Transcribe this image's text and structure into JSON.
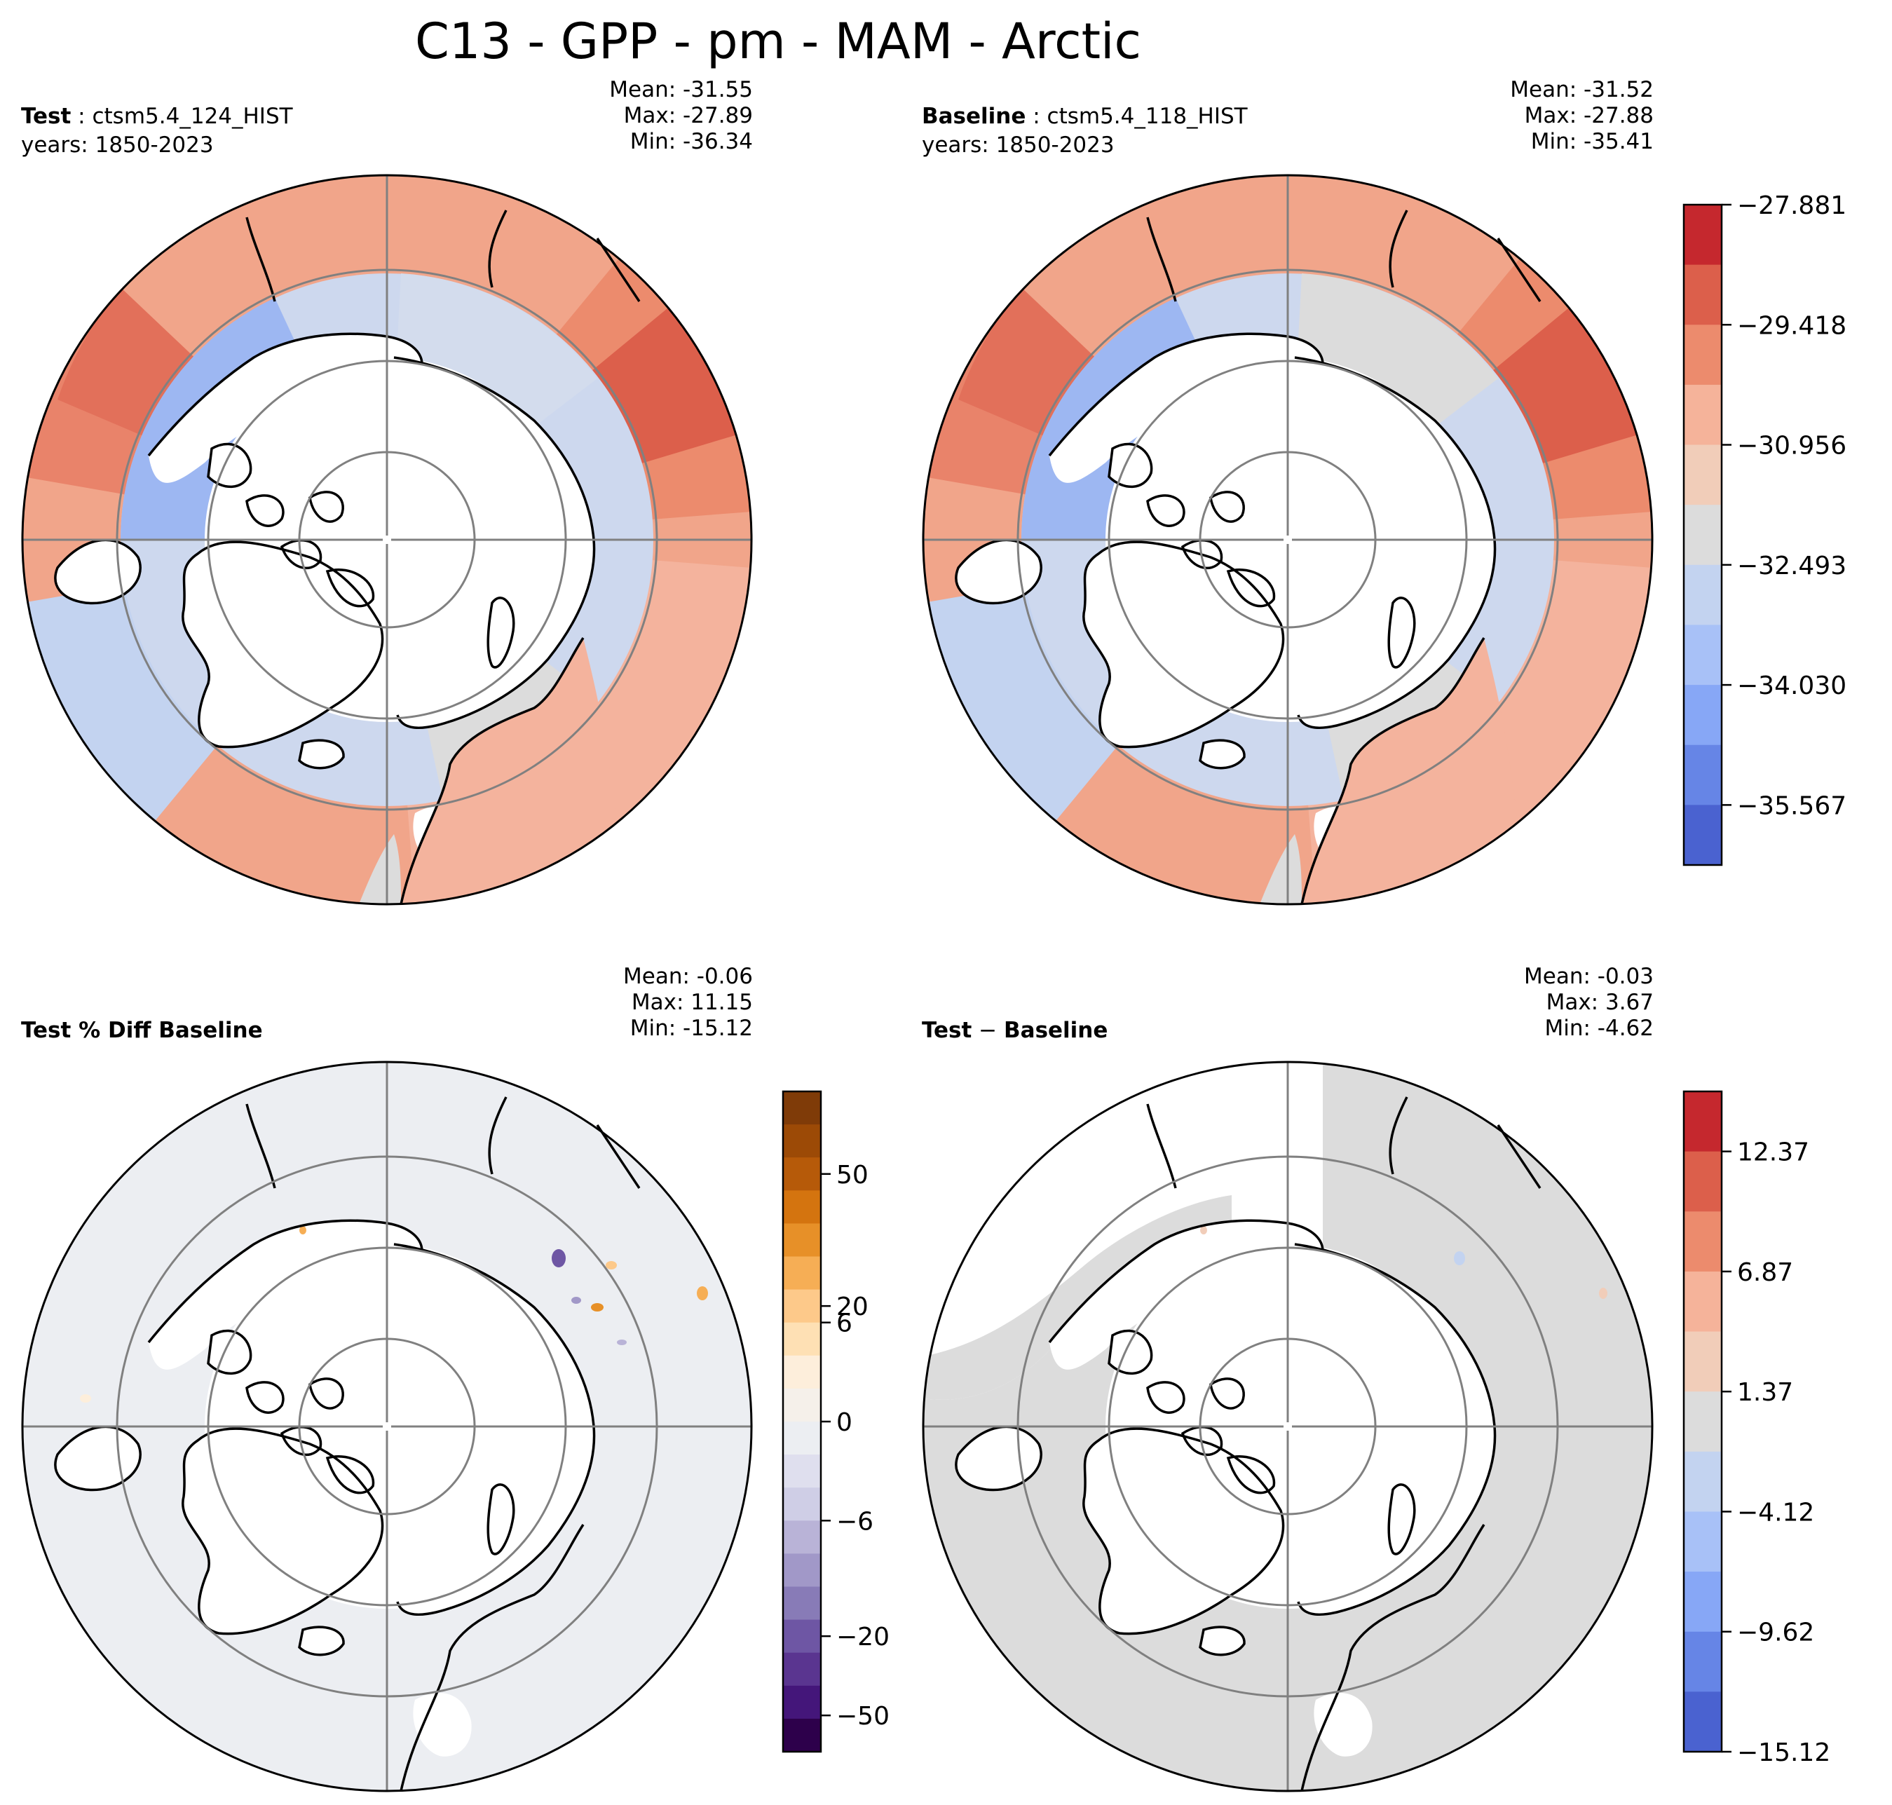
{
  "figure": {
    "title": "C13 - GPP - pm - MAM - Arctic"
  },
  "panels": [
    {
      "id": "test",
      "label_bold": "Test",
      "label_sep": " : ",
      "label_rest": "ctsm5.4_124_HIST",
      "years": "years: 1850-2023",
      "stats": {
        "mean": "Mean: -31.55",
        "max": "Max: -27.89",
        "min": "Min: -36.34"
      }
    },
    {
      "id": "baseline",
      "label_bold": "Baseline",
      "label_sep": " : ",
      "label_rest": "ctsm5.4_118_HIST",
      "years": "years: 1850-2023",
      "stats": {
        "mean": "Mean: -31.52",
        "max": "Max: -27.88",
        "min": "Min: -35.41"
      }
    },
    {
      "id": "pct-diff",
      "label_bold": "Test % Diff Baseline",
      "stats": {
        "mean": "Mean: -0.06",
        "max": "Max: 11.15",
        "min": "Min: -15.12"
      }
    },
    {
      "id": "diff",
      "label_bold": "Test",
      "label_sep": " − ",
      "label_rest2": "Baseline",
      "stats": {
        "mean": "Mean: -0.03",
        "max": "Max:  3.67",
        "min": "Min: -4.62"
      }
    }
  ],
  "colorbars": {
    "top": {
      "ticks": [
        "−27.881",
        "−29.418",
        "−30.956",
        "−32.493",
        "−34.030",
        "−35.567"
      ],
      "colors": [
        "#c5282e",
        "#dc5f4b",
        "#ec8b6d",
        "#f5b39a",
        "#f1cdb9",
        "#dcdcdc",
        "#c3d3f0",
        "#a8c1f7",
        "#87a7f6",
        "#6685e6",
        "#4a62d0"
      ]
    },
    "pct": {
      "ticks": [
        "50",
        "20",
        "6",
        "0",
        "−6",
        "−20",
        "−50"
      ],
      "colors": [
        "#7f3b08",
        "#9c4a06",
        "#b65a09",
        "#d4740f",
        "#e79028",
        "#f6ae55",
        "#fdc98a",
        "#fee0b4",
        "#fdeedb",
        "#f5f0ea",
        "#eceef2",
        "#dfdfee",
        "#cfcee6",
        "#b9b3d7",
        "#a198c8",
        "#887bb7",
        "#6e56a4",
        "#5a3590",
        "#44167a",
        "#2d004b"
      ]
    },
    "diff": {
      "ticks": [
        "12.37",
        "6.87",
        "1.37",
        "−4.12",
        "−9.62",
        "−15.12"
      ],
      "colors": [
        "#c5282e",
        "#dc5f4b",
        "#ec8b6d",
        "#f5b39a",
        "#f1cdb9",
        "#dcdcdc",
        "#c3d3f0",
        "#a8c1f7",
        "#87a7f6",
        "#6685e6",
        "#4a62d0"
      ]
    }
  },
  "chart_data": [
    {
      "type": "heatmap",
      "title": "Test : ctsm5.4_124_HIST",
      "subtitle": "years: 1850-2023",
      "projection": "north polar stereographic (Arctic)",
      "colorbar_ticks": [
        -27.881,
        -29.418,
        -30.956,
        -32.493,
        -34.03,
        -35.567
      ],
      "stats": {
        "mean": -31.55,
        "max": -27.89,
        "min": -36.34
      }
    },
    {
      "type": "heatmap",
      "title": "Baseline : ctsm5.4_118_HIST",
      "subtitle": "years: 1850-2023",
      "projection": "north polar stereographic (Arctic)",
      "colorbar_ticks": [
        -27.881,
        -29.418,
        -30.956,
        -32.493,
        -34.03,
        -35.567
      ],
      "stats": {
        "mean": -31.52,
        "max": -27.88,
        "min": -35.41
      }
    },
    {
      "type": "heatmap",
      "title": "Test % Diff Baseline",
      "projection": "north polar stereographic (Arctic)",
      "colorbar_ticks": [
        50,
        20,
        6,
        0,
        -6,
        -20,
        -50
      ],
      "stats": {
        "mean": -0.06,
        "max": 11.15,
        "min": -15.12
      }
    },
    {
      "type": "heatmap",
      "title": "Test − Baseline",
      "projection": "north polar stereographic (Arctic)",
      "colorbar_ticks": [
        12.37,
        6.87,
        1.37,
        -4.12,
        -9.62,
        -15.12
      ],
      "stats": {
        "mean": -0.03,
        "max": 3.67,
        "min": -4.62
      }
    }
  ]
}
